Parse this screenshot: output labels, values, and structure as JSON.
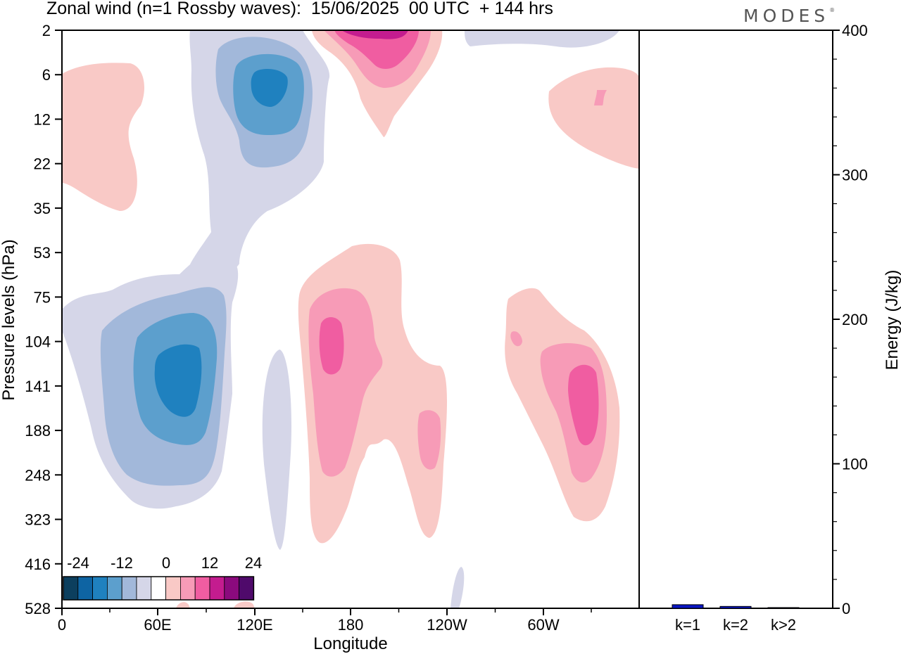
{
  "title": "Zonal wind (n=1 Rossby waves):  15/06/2025  00 UTC  + 144 hrs",
  "logo": "MODES",
  "logo_mark": "®",
  "colors": {
    "blue3": "#1f81bf",
    "blue2": "#5c9fcd",
    "blue1": "#a2b8da",
    "blue0": "#d5d6e8",
    "pink0": "#f9c9c6",
    "pink1": "#f79bb7",
    "pink2": "#f05da1",
    "pink3": "#c41c8f",
    "bar": "#0a16c4"
  },
  "chart_data": [
    {
      "type": "heatmap",
      "title": "Zonal wind (n=1 Rossby waves):  15/06/2025  00 UTC  + 144 hrs",
      "xlabel": "Longitude",
      "ylabel": "Pressure levels (hPa)",
      "x_ticks": [
        "0",
        "60E",
        "120E",
        "180",
        "120W",
        "60W"
      ],
      "y_ticks": [
        "2",
        "6",
        "12",
        "22",
        "35",
        "53",
        "75",
        "104",
        "141",
        "188",
        "248",
        "323",
        "416",
        "528"
      ],
      "colorbar": {
        "labels": [
          "-24",
          "-12",
          "0",
          "12",
          "24"
        ],
        "levels": [
          -30,
          -24,
          -18,
          -12,
          -6,
          -3,
          3,
          6,
          12,
          18,
          24,
          30
        ],
        "colors": [
          "#0c3f5e",
          "#0e64a3",
          "#1f81bf",
          "#5c9fcd",
          "#a2b8da",
          "#d5d6e8",
          "#ffffff",
          "#f9c9c6",
          "#f79bb7",
          "#f05da1",
          "#c41c8f",
          "#8b0a7d",
          "#4f0a6b"
        ]
      }
    },
    {
      "type": "bar",
      "ylabel": "Energy (J/kg)",
      "categories": [
        "k=1",
        "k=2",
        "k>2"
      ],
      "values": [
        2.5,
        1.3,
        0.5
      ],
      "ylim": [
        0,
        400
      ],
      "y_ticks": [
        "0",
        "100",
        "200",
        "300",
        "400"
      ]
    }
  ]
}
